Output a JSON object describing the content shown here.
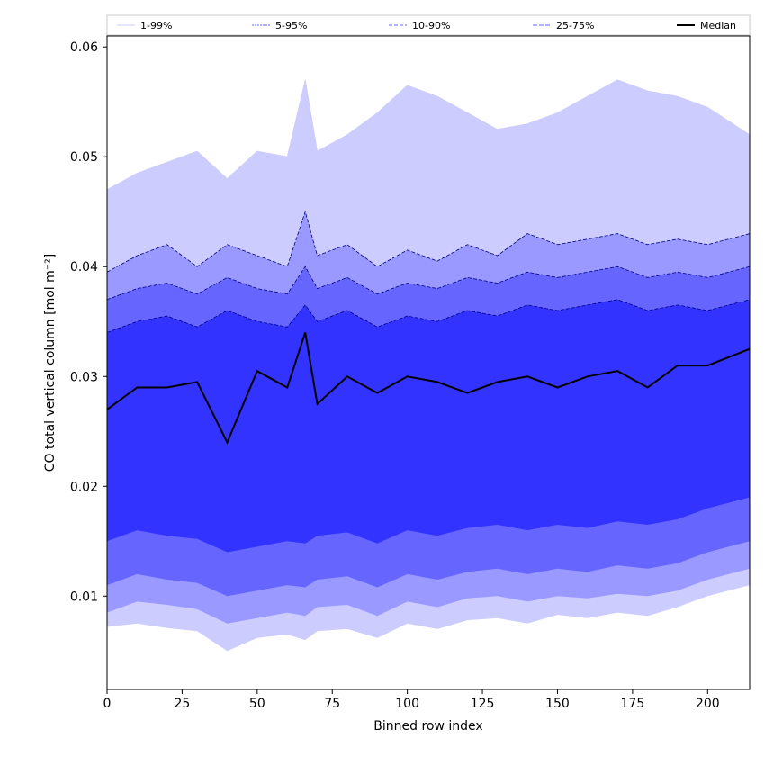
{
  "chart_data": {
    "type": "area",
    "title": "",
    "xlabel": "Binned row index",
    "ylabel": "CO total vertical column [mol m⁻²]",
    "xlim": [
      0,
      214
    ],
    "ylim": [
      0.0015,
      0.061
    ],
    "grid": false,
    "legend_position": "top",
    "x_ticks": [
      "0",
      "25",
      "50",
      "75",
      "100",
      "125",
      "150",
      "175",
      "200"
    ],
    "x_tick_values": [
      0,
      25,
      50,
      75,
      100,
      125,
      150,
      175,
      200
    ],
    "y_ticks": [
      "0.01",
      "0.02",
      "0.03",
      "0.04",
      "0.05",
      "0.06"
    ],
    "y_tick_values": [
      0.01,
      0.02,
      0.03,
      0.04,
      0.05,
      0.06
    ],
    "x_anchors": [
      0,
      10,
      20,
      30,
      40,
      50,
      60,
      66,
      70,
      80,
      90,
      100,
      110,
      120,
      130,
      140,
      150,
      160,
      170,
      180,
      190,
      200,
      214
    ],
    "series": [
      {
        "name": "1-99%",
        "kind": "band",
        "fill": "#ccccff",
        "line_color": "#ccccff",
        "lower": [
          0.0072,
          0.0075,
          0.0071,
          0.0068,
          0.005,
          0.0062,
          0.0065,
          0.006,
          0.0068,
          0.007,
          0.0062,
          0.0075,
          0.007,
          0.0078,
          0.008,
          0.0075,
          0.0083,
          0.008,
          0.0085,
          0.0082,
          0.009,
          0.01,
          0.011
        ],
        "upper": [
          0.047,
          0.0485,
          0.0495,
          0.0505,
          0.048,
          0.0505,
          0.05,
          0.057,
          0.0505,
          0.052,
          0.054,
          0.0565,
          0.0555,
          0.054,
          0.0525,
          0.053,
          0.054,
          0.0555,
          0.057,
          0.056,
          0.0555,
          0.0545,
          0.052
        ]
      },
      {
        "name": "5-95%",
        "kind": "band",
        "fill": "#9999ff",
        "line_color": "#000080",
        "lower": [
          0.0085,
          0.0095,
          0.0092,
          0.0088,
          0.0075,
          0.008,
          0.0085,
          0.0082,
          0.009,
          0.0092,
          0.0082,
          0.0095,
          0.009,
          0.0098,
          0.01,
          0.0095,
          0.01,
          0.0098,
          0.0102,
          0.01,
          0.0105,
          0.0115,
          0.0125
        ],
        "upper": [
          0.0395,
          0.041,
          0.042,
          0.04,
          0.042,
          0.041,
          0.04,
          0.045,
          0.041,
          0.042,
          0.04,
          0.0415,
          0.0405,
          0.042,
          0.041,
          0.043,
          0.042,
          0.0425,
          0.043,
          0.042,
          0.0425,
          0.042,
          0.043
        ]
      },
      {
        "name": "10-90%",
        "kind": "band",
        "fill": "#6666ff",
        "line_color": "#000080",
        "lower": [
          0.011,
          0.012,
          0.0115,
          0.0112,
          0.01,
          0.0105,
          0.011,
          0.0108,
          0.0115,
          0.0118,
          0.0108,
          0.012,
          0.0115,
          0.0122,
          0.0125,
          0.012,
          0.0125,
          0.0122,
          0.0128,
          0.0125,
          0.013,
          0.014,
          0.015
        ],
        "upper": [
          0.037,
          0.038,
          0.0385,
          0.0375,
          0.039,
          0.038,
          0.0375,
          0.04,
          0.038,
          0.039,
          0.0375,
          0.0385,
          0.038,
          0.039,
          0.0385,
          0.0395,
          0.039,
          0.0395,
          0.04,
          0.039,
          0.0395,
          0.039,
          0.04
        ]
      },
      {
        "name": "25-75%",
        "kind": "band",
        "fill": "#3333ff",
        "line_color": "#000080",
        "lower": [
          0.015,
          0.016,
          0.0155,
          0.0152,
          0.014,
          0.0145,
          0.015,
          0.0148,
          0.0155,
          0.0158,
          0.0148,
          0.016,
          0.0155,
          0.0162,
          0.0165,
          0.016,
          0.0165,
          0.0162,
          0.0168,
          0.0165,
          0.017,
          0.018,
          0.019
        ],
        "upper": [
          0.034,
          0.035,
          0.0355,
          0.0345,
          0.036,
          0.035,
          0.0345,
          0.0365,
          0.035,
          0.036,
          0.0345,
          0.0355,
          0.035,
          0.036,
          0.0355,
          0.0365,
          0.036,
          0.0365,
          0.037,
          0.036,
          0.0365,
          0.036,
          0.037
        ]
      },
      {
        "name": "Median",
        "kind": "line",
        "line_color": "#000000",
        "values": [
          0.027,
          0.029,
          0.029,
          0.0295,
          0.024,
          0.0305,
          0.029,
          0.034,
          0.0275,
          0.03,
          0.0285,
          0.03,
          0.0295,
          0.0285,
          0.0295,
          0.03,
          0.029,
          0.03,
          0.0305,
          0.029,
          0.031,
          0.031,
          0.0325
        ]
      }
    ]
  }
}
